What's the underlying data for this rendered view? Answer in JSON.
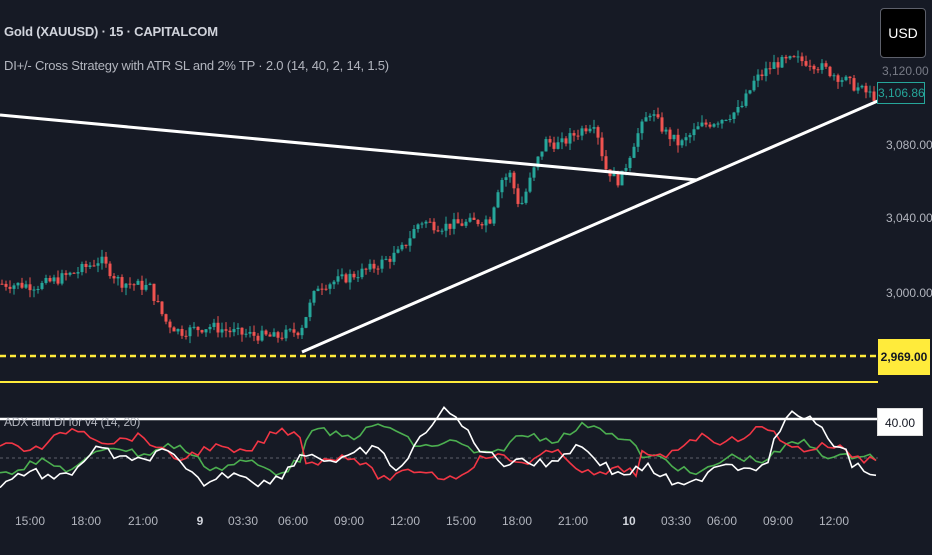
{
  "header": {
    "symbol_line": "Gold (XAUUSD) · 15 · CAPITALCOM",
    "strategy_line": "DI+/- Cross Strategy with ATR SL and 2% TP · 2.0 (14, 40, 2, 14, 1.5)"
  },
  "indicator": {
    "label": "ADX and DI for v4 (14, 20)",
    "level_value": "40.00"
  },
  "currency_button": "USD",
  "price_axis": {
    "labels": [
      "3,080.00",
      "3,040.00",
      "3,000.00"
    ],
    "top_partial": "3,120.00",
    "current_price": "3,106.86",
    "yellow_level": "2,969.00"
  },
  "time_axis": [
    "15:00",
    "18:00",
    "21:00",
    "9",
    "03:30",
    "06:00",
    "09:00",
    "12:00",
    "15:00",
    "18:00",
    "21:00",
    "10",
    "03:30",
    "06:00",
    "09:00",
    "12:00"
  ],
  "colors": {
    "background": "#161a25",
    "up_candle": "#26a69a",
    "down_candle": "#ef5350",
    "trendline": "#ffffff",
    "level_line": "#ffeb3b",
    "di_plus": "#4caf50",
    "di_minus": "#f23645",
    "adx": "#ffffff"
  }
}
